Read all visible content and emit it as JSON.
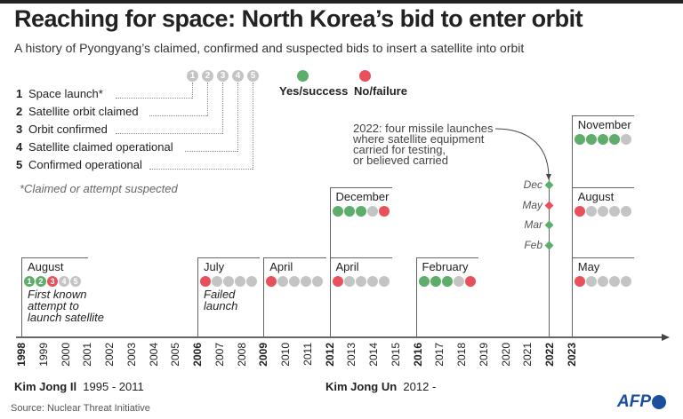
{
  "title": "Reaching for space: North Korea’s bid to enter orbit",
  "subtitle": "A history of Pyongyang’s claimed, confirmed and suspected bids to insert a satellite into orbit",
  "colors": {
    "yes": "#5cae6a",
    "no": "#e8505b",
    "none": "#c4c4c4",
    "afp": "#1a4e9e"
  },
  "legend": {
    "stages": [
      {
        "num": "1",
        "label": "Space launch*"
      },
      {
        "num": "2",
        "label": "Satellite orbit claimed"
      },
      {
        "num": "3",
        "label": "Orbit confirmed"
      },
      {
        "num": "4",
        "label": "Satellite claimed operational"
      },
      {
        "num": "5",
        "label": "Confirmed operational"
      }
    ],
    "yes_label": "Yes/success",
    "no_label": "No/failure",
    "note": "*Claimed or attempt suspected"
  },
  "events": [
    {
      "year": 1998,
      "month": "August",
      "status": [
        "yes",
        "yes",
        "no",
        "none",
        "none"
      ],
      "numbered": true,
      "description": [
        "First known",
        "attempt to",
        "launch satellite"
      ],
      "level": 0,
      "span": 3
    },
    {
      "year": 2006,
      "month": "July",
      "status": [
        "no",
        "none",
        "none",
        "none",
        "none"
      ],
      "description": [
        "Failed",
        "launch"
      ],
      "level": 0,
      "span": 2.8
    },
    {
      "year": 2009,
      "month": "April",
      "status": [
        "no",
        "none",
        "none",
        "none",
        "none"
      ],
      "level": 0,
      "span": 2.8
    },
    {
      "year": 2012,
      "month": "April",
      "status": [
        "no",
        "none",
        "none",
        "none",
        "none"
      ],
      "level": 0,
      "span": 2.8
    },
    {
      "year": 2012,
      "month": "December",
      "status": [
        "yes",
        "yes",
        "yes",
        "none",
        "no"
      ],
      "level": 1,
      "span": 2.8
    },
    {
      "year": 2016,
      "month": "February",
      "status": [
        "yes",
        "yes",
        "yes",
        "none",
        "no"
      ],
      "level": 0,
      "span": 2.8
    },
    {
      "year": 2023,
      "month": "May",
      "status": [
        "no",
        "none",
        "none",
        "none",
        "none"
      ],
      "level": 0,
      "span": 2.8
    },
    {
      "year": 2023,
      "month": "August",
      "status": [
        "no",
        "none",
        "none",
        "none",
        "none"
      ],
      "level": 1,
      "span": 2.8
    },
    {
      "year": 2023,
      "month": "November",
      "status": [
        "yes",
        "yes",
        "yes",
        "yes",
        "none"
      ],
      "level": 2,
      "span": 2.8
    }
  ],
  "missiles_2022": {
    "annotation": [
      "2022: four missile launches",
      "where satellite equipment",
      "carried for testing,",
      "or believed carried"
    ],
    "launches": [
      {
        "month": "Dec",
        "status": "yes"
      },
      {
        "month": "May",
        "status": "no"
      },
      {
        "month": "Mar",
        "status": "yes"
      },
      {
        "month": "Feb",
        "status": "yes"
      }
    ]
  },
  "years": [
    1998,
    1999,
    2000,
    2001,
    2002,
    2003,
    2004,
    2005,
    2006,
    2007,
    2008,
    2009,
    2010,
    2011,
    2012,
    2013,
    2014,
    2015,
    2016,
    2017,
    2018,
    2019,
    2020,
    2021,
    2022,
    2023
  ],
  "bold_years": [
    1998,
    2006,
    2009,
    2012,
    2016,
    2022,
    2023
  ],
  "rulers": [
    {
      "name": "Kim Jong Il",
      "period": "1995 - 2011"
    },
    {
      "name": "Kim Jong Un",
      "period": "2012 -"
    }
  ],
  "source": "Source: Nuclear Threat Initiative",
  "logo": "AFP"
}
